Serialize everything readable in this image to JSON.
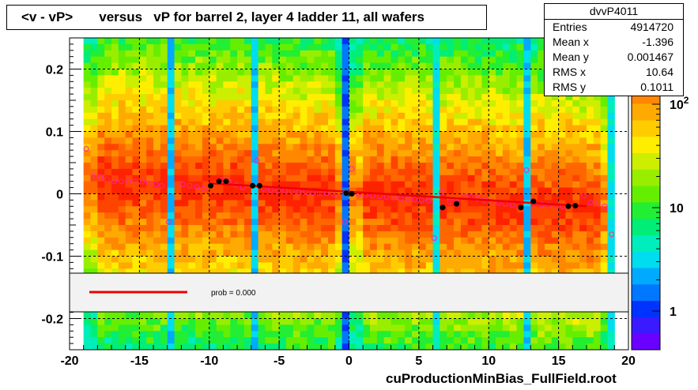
{
  "title": "<v - vP>       versus   vP for barrel 2, layer 4 ladder 11, all wafers",
  "footer": "cuProductionMinBias_FullField.root",
  "stats": {
    "name": "dvvP4011",
    "rows": [
      {
        "label": "Entries",
        "value": "4914720"
      },
      {
        "label": "Mean x",
        "value": "-1.396"
      },
      {
        "label": "Mean y",
        "value": "0.001467"
      },
      {
        "label": "RMS x",
        "value": "10.64"
      },
      {
        "label": "RMS y",
        "value": "0.1011"
      }
    ]
  },
  "legend": {
    "fit_label": "prob = 0.000",
    "fit_color": "#ee0000"
  },
  "chart_data": {
    "type": "heatmap",
    "x_range": [
      -20,
      20
    ],
    "y_range": [
      -0.25,
      0.25
    ],
    "x_ticks": [
      "-20",
      "-15",
      "-10",
      "-5",
      "0",
      "5",
      "10",
      "15",
      "20"
    ],
    "y_ticks": [
      "0.2",
      "0.1",
      "0",
      "-0.1",
      "-0.2"
    ],
    "z_scale": "log",
    "z_ticks": [
      "1",
      "10",
      "10^2"
    ],
    "grid": true,
    "palette": [
      "#6a00ff",
      "#3a1aff",
      "#0033ff",
      "#0077ff",
      "#00aaff",
      "#00ddee",
      "#00eebb",
      "#00ee77",
      "#22ee33",
      "#66ee00",
      "#99ee00",
      "#ccee00",
      "#ffee00",
      "#ffcc00",
      "#ffaa00",
      "#ff8800",
      "#ff6600",
      "#ff4400",
      "#ff2200"
    ],
    "profile_points_color": "#ff22aa",
    "fit_line": {
      "x": [
        -10,
        17
      ],
      "y": [
        0.017,
        -0.02
      ],
      "color": "#ee0000"
    },
    "black_points": [
      {
        "x": -9.9,
        "y": 0.013
      },
      {
        "x": -9.3,
        "y": 0.02
      },
      {
        "x": -8.8,
        "y": 0.02
      },
      {
        "x": -6.9,
        "y": 0.013
      },
      {
        "x": -6.4,
        "y": 0.013
      },
      {
        "x": -0.2,
        "y": 0.001
      },
      {
        "x": 0.2,
        "y": 0.0
      },
      {
        "x": 6.7,
        "y": -0.022
      },
      {
        "x": 7.7,
        "y": -0.016
      },
      {
        "x": 12.3,
        "y": -0.022
      },
      {
        "x": 13.2,
        "y": -0.012
      },
      {
        "x": 15.7,
        "y": -0.02
      },
      {
        "x": 16.2,
        "y": -0.019
      }
    ],
    "profile_points": [
      {
        "x": -18.8,
        "y": 0.072
      },
      {
        "x": -18.3,
        "y": 0.027
      },
      {
        "x": -17.8,
        "y": 0.027
      },
      {
        "x": -17.3,
        "y": 0.023
      },
      {
        "x": -16.8,
        "y": 0.02
      },
      {
        "x": -16.3,
        "y": 0.02
      },
      {
        "x": -15.8,
        "y": 0.02
      },
      {
        "x": -15.3,
        "y": 0.02
      },
      {
        "x": -14.8,
        "y": 0.02
      },
      {
        "x": -14.3,
        "y": 0.017
      },
      {
        "x": -13.8,
        "y": 0.015
      },
      {
        "x": -13.4,
        "y": 0.013
      },
      {
        "x": -12.9,
        "y": -0.045
      },
      {
        "x": -11.9,
        "y": 0.015
      },
      {
        "x": -11.4,
        "y": 0.013
      },
      {
        "x": -10.9,
        "y": 0.011
      },
      {
        "x": -10.4,
        "y": 0.008
      },
      {
        "x": -9.1,
        "y": 0.022
      },
      {
        "x": -8.6,
        "y": 0.02
      },
      {
        "x": -8.1,
        "y": 0.014
      },
      {
        "x": -7.6,
        "y": 0.01
      },
      {
        "x": -6.6,
        "y": 0.053
      },
      {
        "x": -6.1,
        "y": 0.008
      },
      {
        "x": -5.6,
        "y": 0.006
      },
      {
        "x": -5.1,
        "y": 0.005
      },
      {
        "x": -4.6,
        "y": 0.005
      },
      {
        "x": -4.1,
        "y": 0.004
      },
      {
        "x": -3.6,
        "y": 0.003
      },
      {
        "x": -3.1,
        "y": 0.003
      },
      {
        "x": -2.6,
        "y": 0.002
      },
      {
        "x": -2.1,
        "y": 0.001
      },
      {
        "x": -1.6,
        "y": 0.001
      },
      {
        "x": -1.1,
        "y": 0.0
      },
      {
        "x": -0.3,
        "y": -0.045
      },
      {
        "x": 0.2,
        "y": 0.04
      },
      {
        "x": 0.7,
        "y": -0.001
      },
      {
        "x": 1.2,
        "y": -0.002
      },
      {
        "x": 1.7,
        "y": -0.003
      },
      {
        "x": 2.2,
        "y": -0.004
      },
      {
        "x": 2.7,
        "y": -0.005
      },
      {
        "x": 3.2,
        "y": -0.006
      },
      {
        "x": 3.7,
        "y": -0.007
      },
      {
        "x": 4.2,
        "y": -0.008
      },
      {
        "x": 4.7,
        "y": -0.009
      },
      {
        "x": 5.2,
        "y": -0.01
      },
      {
        "x": 5.7,
        "y": -0.011
      },
      {
        "x": 6.1,
        "y": -0.071
      },
      {
        "x": 6.6,
        "y": 0.002
      },
      {
        "x": 7.2,
        "y": -0.013
      },
      {
        "x": 7.7,
        "y": -0.014
      },
      {
        "x": 8.2,
        "y": -0.003
      },
      {
        "x": 8.7,
        "y": -0.005
      },
      {
        "x": 9.2,
        "y": -0.008
      },
      {
        "x": 9.7,
        "y": -0.01
      },
      {
        "x": 10.2,
        "y": -0.012
      },
      {
        "x": 10.7,
        "y": -0.014
      },
      {
        "x": 11.2,
        "y": -0.016
      },
      {
        "x": 11.7,
        "y": -0.018
      },
      {
        "x": 12.7,
        "y": 0.038
      },
      {
        "x": 13.3,
        "y": -0.016
      },
      {
        "x": 13.8,
        "y": -0.017
      },
      {
        "x": 14.3,
        "y": -0.018
      },
      {
        "x": 14.8,
        "y": -0.019
      },
      {
        "x": 15.3,
        "y": -0.02
      },
      {
        "x": 16.8,
        "y": -0.003
      },
      {
        "x": 17.3,
        "y": -0.014
      },
      {
        "x": 17.8,
        "y": -0.016
      },
      {
        "x": 18.3,
        "y": -0.02
      },
      {
        "x": 18.8,
        "y": -0.065
      }
    ]
  }
}
